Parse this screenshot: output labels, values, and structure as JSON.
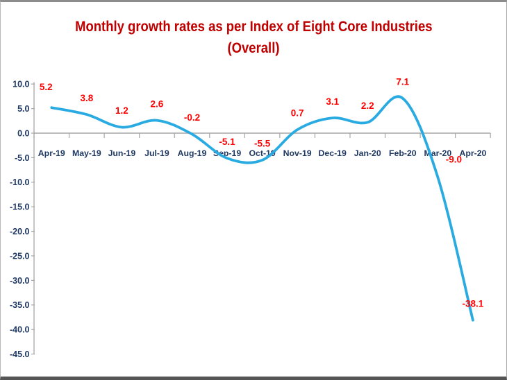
{
  "chart_data": {
    "type": "line",
    "title": "Monthly growth rates as per Index of Eight Core Industries",
    "subtitle": "(Overall)",
    "categories": [
      "Apr-19",
      "May-19",
      "Jun-19",
      "Jul-19",
      "Aug-19",
      "Sep-19",
      "Oct-19",
      "Nov-19",
      "Dec-19",
      "Jan-20",
      "Feb-20",
      "Mar-20",
      "Apr-20"
    ],
    "values": [
      5.2,
      3.8,
      1.2,
      2.6,
      -0.2,
      -5.1,
      -5.5,
      0.7,
      3.1,
      2.2,
      7.1,
      -9.0,
      -38.1
    ],
    "xlabel": "",
    "ylabel": "",
    "ylim": [
      -45,
      10
    ],
    "ytick_step": 5,
    "ytick_decimals": 1,
    "data_label_decimals": 1,
    "grid": false,
    "legend": "none",
    "smooth": true,
    "label_offsets": {
      "0": [
        -8,
        -6
      ],
      "11": [
        23,
        -2
      ]
    },
    "colors": {
      "title": "#C00000",
      "line": "#29ABE2",
      "data_label": "#FF0000",
      "axis_text": "#1F3864",
      "axis_line": "#A6A6A6"
    }
  }
}
